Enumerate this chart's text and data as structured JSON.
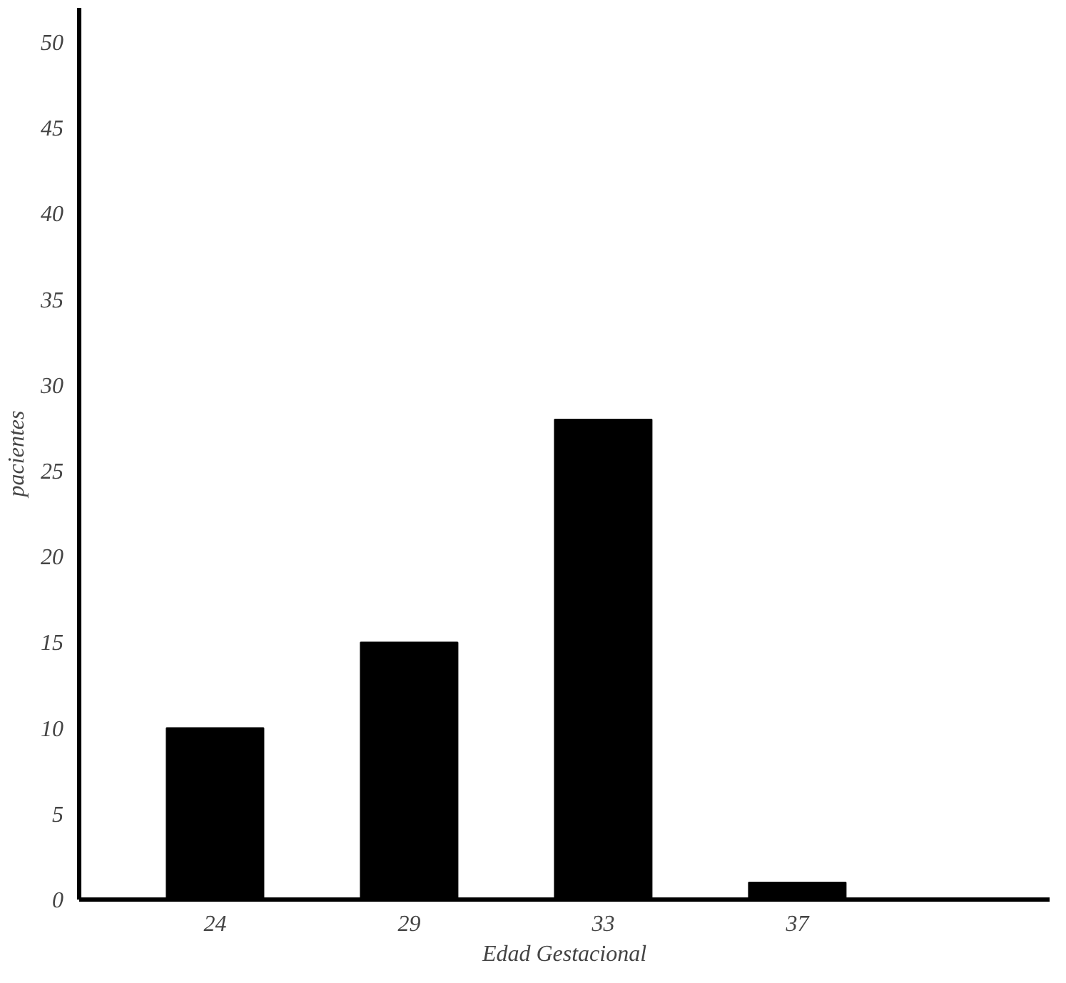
{
  "chart_data": {
    "type": "bar",
    "xlabel": "Edad Gestacional",
    "ylabel": "pacientes",
    "categories": [
      "24",
      "29",
      "33",
      "37"
    ],
    "values": [
      10,
      15,
      28,
      1
    ],
    "color": "#000000",
    "ylim": [
      0,
      52
    ],
    "yticks": [
      0,
      5,
      10,
      15,
      20,
      25,
      30,
      35,
      40,
      45,
      50
    ],
    "grid": false
  }
}
